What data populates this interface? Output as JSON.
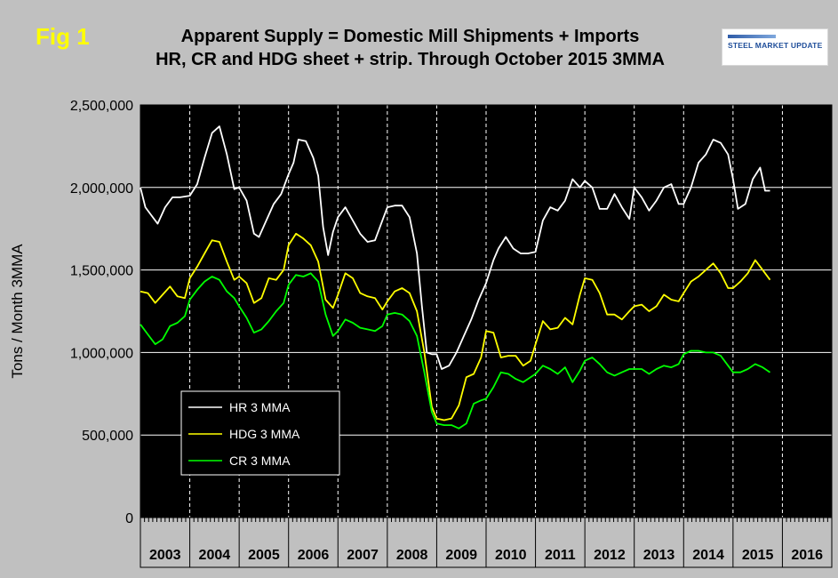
{
  "figure": {
    "label": "Fig 1",
    "title_line1": "Apparent Supply = Domestic Mill Shipments + Imports",
    "title_line2": "HR, CR and HDG sheet + strip. Through October 2015 3MMA",
    "logo_text": "STEEL MARKET UPDATE"
  },
  "chart_data": {
    "type": "line",
    "title": "Apparent Supply = Domestic Mill Shipments + Imports",
    "subtitle": "HR, CR and HDG sheet + strip. Through October 2015 3MMA",
    "xlabel": "",
    "ylabel": "Tons / Month 3MMA",
    "ylim": [
      0,
      2500000
    ],
    "yticks": [
      "0",
      "500,000",
      "1,000,000",
      "1,500,000",
      "2,000,000",
      "2,500,000"
    ],
    "ytick_values": [
      0,
      500000,
      1000000,
      1500000,
      2000000,
      2500000
    ],
    "categories": [
      "2003",
      "2004",
      "2005",
      "2006",
      "2007",
      "2008",
      "2009",
      "2010",
      "2011",
      "2012",
      "2013",
      "2014",
      "2015",
      "2016"
    ],
    "grid": true,
    "legend_position": "lower-left",
    "background": "#000000",
    "series": [
      {
        "name": "HR 3 MMA",
        "color": "#ffffff",
        "x": [
          2003.0,
          2003.1,
          2003.2,
          2003.35,
          2003.5,
          2003.65,
          2003.8,
          2004.0,
          2004.15,
          2004.3,
          2004.45,
          2004.6,
          2004.75,
          2004.9,
          2005.0,
          2005.15,
          2005.3,
          2005.4,
          2005.55,
          2005.7,
          2005.85,
          2006.0,
          2006.1,
          2006.2,
          2006.35,
          2006.5,
          2006.6,
          2006.7,
          2006.8,
          2006.9,
          2007.0,
          2007.15,
          2007.3,
          2007.45,
          2007.6,
          2007.75,
          2007.9,
          2008.0,
          2008.15,
          2008.3,
          2008.45,
          2008.6,
          2008.7,
          2008.8,
          2008.9,
          2009.0,
          2009.1,
          2009.25,
          2009.4,
          2009.55,
          2009.7,
          2009.85,
          2010.0,
          2010.15,
          2010.25,
          2010.4,
          2010.55,
          2010.7,
          2010.85,
          2011.0,
          2011.15,
          2011.3,
          2011.45,
          2011.6,
          2011.75,
          2011.9,
          2012.0,
          2012.15,
          2012.3,
          2012.45,
          2012.6,
          2012.75,
          2012.9,
          2013.0,
          2013.15,
          2013.3,
          2013.45,
          2013.6,
          2013.75,
          2013.9,
          2014.0,
          2014.15,
          2014.3,
          2014.45,
          2014.6,
          2014.75,
          2014.9,
          2015.0,
          2015.1,
          2015.25,
          2015.4,
          2015.55,
          2015.65,
          2015.75
        ],
        "y": [
          2000000,
          1880000,
          1840000,
          1780000,
          1880000,
          1940000,
          1940000,
          1950000,
          2020000,
          2180000,
          2330000,
          2370000,
          2200000,
          1990000,
          2000000,
          1920000,
          1720000,
          1700000,
          1800000,
          1900000,
          1960000,
          2080000,
          2150000,
          2290000,
          2280000,
          2180000,
          2070000,
          1760000,
          1590000,
          1730000,
          1820000,
          1880000,
          1800000,
          1720000,
          1670000,
          1680000,
          1800000,
          1880000,
          1890000,
          1890000,
          1820000,
          1600000,
          1280000,
          1000000,
          990000,
          990000,
          900000,
          920000,
          1000000,
          1100000,
          1200000,
          1320000,
          1420000,
          1560000,
          1630000,
          1700000,
          1630000,
          1600000,
          1600000,
          1610000,
          1800000,
          1880000,
          1860000,
          1920000,
          2050000,
          2000000,
          2040000,
          2000000,
          1870000,
          1870000,
          1960000,
          1880000,
          1810000,
          2000000,
          1940000,
          1860000,
          1920000,
          2000000,
          2020000,
          1900000,
          1900000,
          2000000,
          2150000,
          2200000,
          2290000,
          2270000,
          2200000,
          2050000,
          1870000,
          1900000,
          2050000,
          2120000,
          1980000,
          1980000
        ]
      },
      {
        "name": "HDG 3 MMA",
        "color": "#ffff00",
        "x": [
          2003.0,
          2003.15,
          2003.3,
          2003.45,
          2003.6,
          2003.75,
          2003.9,
          2004.0,
          2004.15,
          2004.3,
          2004.45,
          2004.6,
          2004.75,
          2004.9,
          2005.0,
          2005.15,
          2005.3,
          2005.45,
          2005.6,
          2005.75,
          2005.9,
          2006.0,
          2006.15,
          2006.3,
          2006.45,
          2006.6,
          2006.75,
          2006.9,
          2007.0,
          2007.15,
          2007.3,
          2007.45,
          2007.6,
          2007.75,
          2007.9,
          2008.0,
          2008.15,
          2008.3,
          2008.45,
          2008.6,
          2008.75,
          2008.9,
          2009.0,
          2009.15,
          2009.3,
          2009.45,
          2009.6,
          2009.75,
          2009.9,
          2010.0,
          2010.15,
          2010.3,
          2010.45,
          2010.6,
          2010.75,
          2010.9,
          2011.0,
          2011.15,
          2011.3,
          2011.45,
          2011.6,
          2011.75,
          2011.9,
          2012.0,
          2012.15,
          2012.3,
          2012.45,
          2012.6,
          2012.75,
          2012.9,
          2013.0,
          2013.15,
          2013.3,
          2013.45,
          2013.6,
          2013.75,
          2013.9,
          2014.0,
          2014.15,
          2014.3,
          2014.45,
          2014.6,
          2014.75,
          2014.9,
          2015.0,
          2015.15,
          2015.3,
          2015.45,
          2015.6,
          2015.75
        ],
        "y": [
          1370000,
          1360000,
          1300000,
          1350000,
          1400000,
          1340000,
          1330000,
          1450000,
          1520000,
          1600000,
          1680000,
          1670000,
          1550000,
          1440000,
          1460000,
          1420000,
          1300000,
          1330000,
          1450000,
          1440000,
          1500000,
          1650000,
          1720000,
          1690000,
          1650000,
          1550000,
          1320000,
          1270000,
          1350000,
          1480000,
          1450000,
          1360000,
          1340000,
          1330000,
          1260000,
          1310000,
          1370000,
          1390000,
          1360000,
          1250000,
          1000000,
          670000,
          600000,
          590000,
          600000,
          680000,
          850000,
          870000,
          970000,
          1130000,
          1120000,
          970000,
          980000,
          980000,
          920000,
          950000,
          1050000,
          1190000,
          1140000,
          1150000,
          1210000,
          1170000,
          1350000,
          1450000,
          1440000,
          1360000,
          1230000,
          1230000,
          1200000,
          1250000,
          1280000,
          1290000,
          1250000,
          1280000,
          1350000,
          1320000,
          1310000,
          1360000,
          1430000,
          1460000,
          1500000,
          1540000,
          1480000,
          1390000,
          1390000,
          1430000,
          1480000,
          1560000,
          1500000,
          1440000
        ]
      },
      {
        "name": "CR 3 MMA",
        "color": "#00ff00",
        "x": [
          2003.0,
          2003.15,
          2003.3,
          2003.45,
          2003.6,
          2003.75,
          2003.9,
          2004.0,
          2004.15,
          2004.3,
          2004.45,
          2004.6,
          2004.75,
          2004.9,
          2005.0,
          2005.15,
          2005.3,
          2005.45,
          2005.6,
          2005.75,
          2005.9,
          2006.0,
          2006.15,
          2006.3,
          2006.45,
          2006.6,
          2006.75,
          2006.9,
          2007.0,
          2007.15,
          2007.3,
          2007.45,
          2007.6,
          2007.75,
          2007.9,
          2008.0,
          2008.15,
          2008.3,
          2008.45,
          2008.6,
          2008.75,
          2008.9,
          2009.0,
          2009.15,
          2009.3,
          2009.45,
          2009.6,
          2009.75,
          2009.9,
          2010.0,
          2010.15,
          2010.3,
          2010.45,
          2010.6,
          2010.75,
          2010.9,
          2011.0,
          2011.15,
          2011.3,
          2011.45,
          2011.6,
          2011.75,
          2011.9,
          2012.0,
          2012.15,
          2012.3,
          2012.45,
          2012.6,
          2012.75,
          2012.9,
          2013.0,
          2013.15,
          2013.3,
          2013.45,
          2013.6,
          2013.75,
          2013.9,
          2014.0,
          2014.15,
          2014.3,
          2014.45,
          2014.6,
          2014.75,
          2014.9,
          2015.0,
          2015.15,
          2015.3,
          2015.45,
          2015.6,
          2015.75
        ],
        "y": [
          1170000,
          1110000,
          1050000,
          1080000,
          1160000,
          1180000,
          1220000,
          1320000,
          1380000,
          1430000,
          1460000,
          1440000,
          1370000,
          1330000,
          1280000,
          1210000,
          1120000,
          1140000,
          1190000,
          1250000,
          1300000,
          1410000,
          1470000,
          1460000,
          1480000,
          1430000,
          1230000,
          1100000,
          1130000,
          1200000,
          1180000,
          1150000,
          1140000,
          1130000,
          1160000,
          1230000,
          1240000,
          1230000,
          1190000,
          1100000,
          880000,
          640000,
          570000,
          560000,
          560000,
          540000,
          570000,
          690000,
          710000,
          720000,
          790000,
          880000,
          870000,
          840000,
          820000,
          850000,
          870000,
          920000,
          900000,
          870000,
          910000,
          820000,
          890000,
          950000,
          970000,
          930000,
          880000,
          860000,
          880000,
          900000,
          900000,
          900000,
          870000,
          900000,
          920000,
          910000,
          930000,
          990000,
          1010000,
          1010000,
          1000000,
          1000000,
          980000,
          920000,
          880000,
          880000,
          900000,
          930000,
          910000,
          880000
        ]
      }
    ]
  }
}
